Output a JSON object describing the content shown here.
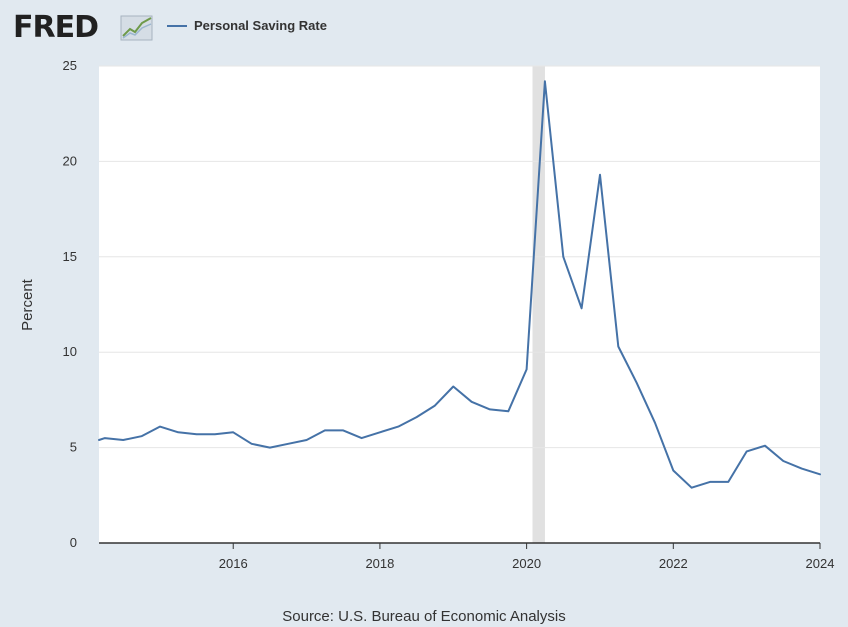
{
  "logo": {
    "text": "FRED",
    "icon": "chart-line-icon"
  },
  "source": "Source: U.S. Bureau of Economic Analysis",
  "colors": {
    "background": "#e1e9f0",
    "plot": "#ffffff",
    "line": "#4572a7",
    "recession": "#e1e1e1",
    "grid": "#e6e6e6"
  },
  "chart_data": {
    "type": "line",
    "ylabel": "Percent",
    "xlabel": "",
    "legend": "top-left",
    "grid": true,
    "xlim": [
      2014.17,
      2024.0
    ],
    "ylim": [
      0,
      25
    ],
    "xticks": [
      {
        "value": 2016,
        "label": "2016"
      },
      {
        "value": 2018,
        "label": "2018"
      },
      {
        "value": 2020,
        "label": "2020"
      },
      {
        "value": 2022,
        "label": "2022"
      },
      {
        "value": 2024,
        "label": "2024"
      }
    ],
    "yticks": [
      {
        "value": 0,
        "label": "0"
      },
      {
        "value": 5,
        "label": "5"
      },
      {
        "value": 10,
        "label": "10"
      },
      {
        "value": 15,
        "label": "15"
      },
      {
        "value": 20,
        "label": "20"
      },
      {
        "value": 25,
        "label": "25"
      }
    ],
    "recessions": [
      {
        "start": 2020.08,
        "end": 2020.25
      }
    ],
    "series": [
      {
        "name": "Personal Saving Rate",
        "color": "#4572a7",
        "x": [
          2014.17,
          2014.25,
          2014.5,
          2014.75,
          2015.0,
          2015.25,
          2015.5,
          2015.75,
          2016.0,
          2016.25,
          2016.5,
          2016.75,
          2017.0,
          2017.25,
          2017.5,
          2017.75,
          2018.0,
          2018.25,
          2018.5,
          2018.75,
          2019.0,
          2019.25,
          2019.5,
          2019.75,
          2020.0,
          2020.25,
          2020.5,
          2020.75,
          2021.0,
          2021.25,
          2021.5,
          2021.75,
          2022.0,
          2022.25,
          2022.5,
          2022.75,
          2023.0,
          2023.25,
          2023.5,
          2023.75,
          2024.0
        ],
        "y": [
          5.4,
          5.5,
          5.4,
          5.6,
          6.1,
          5.8,
          5.7,
          5.7,
          5.8,
          5.2,
          5.0,
          5.2,
          5.4,
          5.9,
          5.9,
          5.5,
          5.8,
          6.1,
          6.6,
          7.2,
          8.2,
          7.4,
          7.0,
          6.9,
          9.1,
          24.2,
          15.0,
          12.3,
          19.3,
          10.3,
          8.4,
          6.3,
          3.8,
          2.9,
          3.2,
          3.2,
          4.8,
          5.1,
          4.3,
          3.9,
          3.6
        ]
      }
    ]
  }
}
